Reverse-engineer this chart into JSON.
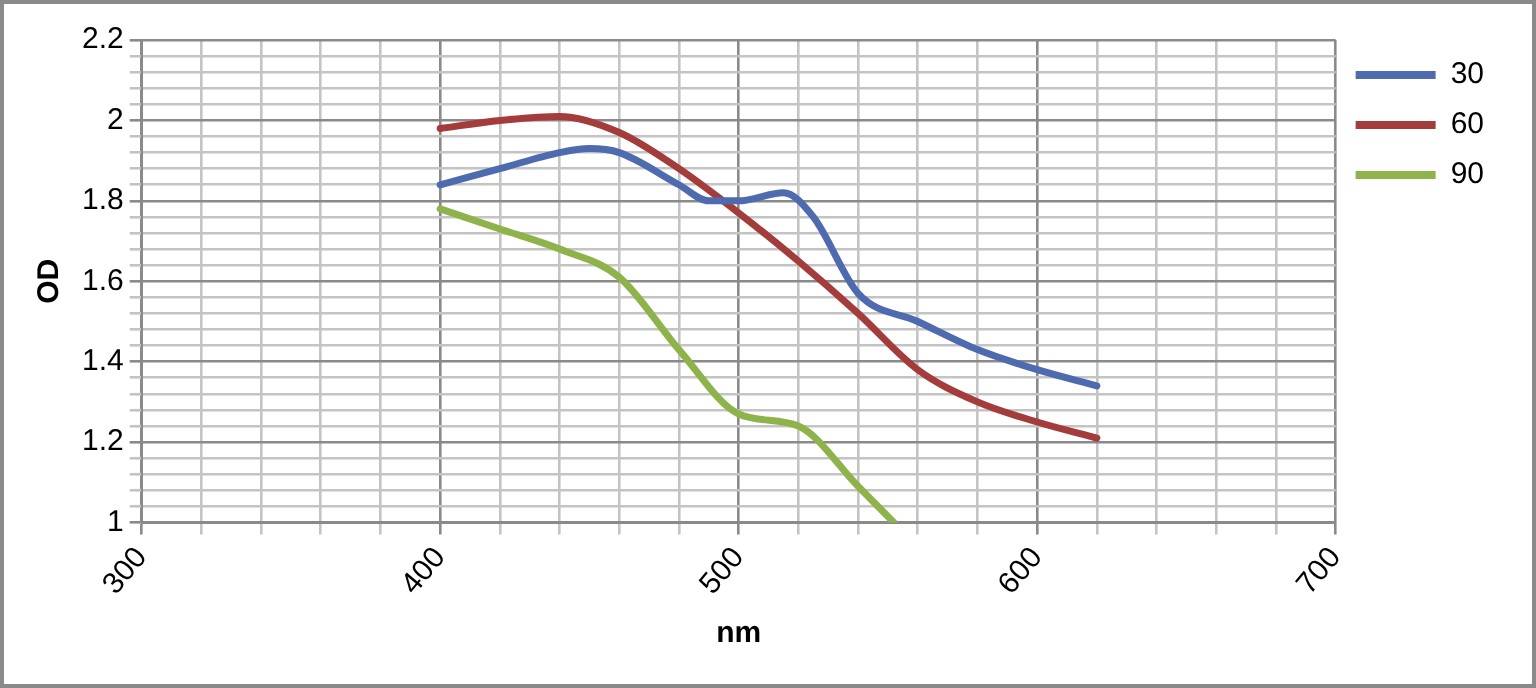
{
  "chart_data": {
    "type": "line",
    "xlabel": "nm",
    "ylabel": "OD",
    "xlim": [
      300,
      700
    ],
    "ylim": [
      1,
      2.2
    ],
    "xticks": [
      300,
      {
        "value": 320,
        "label": null
      },
      {
        "value": 340,
        "label": null
      },
      {
        "value": 360,
        "label": null
      },
      {
        "value": 380,
        "label": null
      },
      400,
      {
        "value": 420,
        "label": null
      },
      {
        "value": 440,
        "label": null
      },
      {
        "value": 460,
        "label": null
      },
      {
        "value": 480,
        "label": null
      },
      500,
      {
        "value": 520,
        "label": null
      },
      {
        "value": 540,
        "label": null
      },
      {
        "value": 560,
        "label": null
      },
      {
        "value": 580,
        "label": null
      },
      600,
      {
        "value": 620,
        "label": null
      },
      {
        "value": 640,
        "label": null
      },
      {
        "value": 660,
        "label": null
      },
      {
        "value": 680,
        "label": null
      },
      700
    ],
    "yticks": [
      1,
      {
        "value": 1.04,
        "label": null
      },
      {
        "value": 1.08,
        "label": null
      },
      {
        "value": 1.12,
        "label": null
      },
      {
        "value": 1.16,
        "label": null
      },
      1.2,
      {
        "value": 1.24,
        "label": null
      },
      {
        "value": 1.28,
        "label": null
      },
      {
        "value": 1.32,
        "label": null
      },
      {
        "value": 1.36,
        "label": null
      },
      1.4,
      {
        "value": 1.44,
        "label": null
      },
      {
        "value": 1.48,
        "label": null
      },
      {
        "value": 1.52,
        "label": null
      },
      {
        "value": 1.56,
        "label": null
      },
      1.6,
      {
        "value": 1.64,
        "label": null
      },
      {
        "value": 1.68,
        "label": null
      },
      {
        "value": 1.72,
        "label": null
      },
      {
        "value": 1.76,
        "label": null
      },
      1.8,
      {
        "value": 1.84,
        "label": null
      },
      {
        "value": 1.88,
        "label": null
      },
      {
        "value": 1.92,
        "label": null
      },
      {
        "value": 1.96,
        "label": null
      },
      2,
      {
        "value": 2.04,
        "label": null
      },
      {
        "value": 2.08,
        "label": null
      },
      {
        "value": 2.12,
        "label": null
      },
      {
        "value": 2.16,
        "label": null
      },
      2.2
    ],
    "grid": true,
    "legend": "top right",
    "marker": "none",
    "line_style": "solid",
    "series": [
      {
        "name": "30",
        "color": "#4f6bb0",
        "x": [
          400,
          420,
          440,
          450,
          460,
          480,
          490,
          500,
          515,
          525,
          540,
          560,
          580,
          600,
          620
        ],
        "values": [
          1.84,
          1.88,
          1.92,
          1.93,
          1.92,
          1.84,
          1.8,
          1.8,
          1.82,
          1.76,
          1.57,
          1.5,
          1.43,
          1.38,
          1.34
        ]
      },
      {
        "name": "60",
        "color": "#a33c3a",
        "x": [
          400,
          420,
          440,
          460,
          480,
          500,
          520,
          540,
          560,
          580,
          600,
          620
        ],
        "values": [
          1.98,
          2.0,
          2.01,
          1.97,
          1.88,
          1.77,
          1.65,
          1.52,
          1.38,
          1.3,
          1.25,
          1.21
        ]
      },
      {
        "name": "90",
        "color": "#8db34a",
        "x": [
          400,
          420,
          440,
          460,
          480,
          500,
          520,
          540,
          552
        ],
        "values": [
          1.78,
          1.73,
          1.68,
          1.61,
          1.43,
          1.27,
          1.24,
          1.09,
          1.0
        ]
      }
    ]
  }
}
